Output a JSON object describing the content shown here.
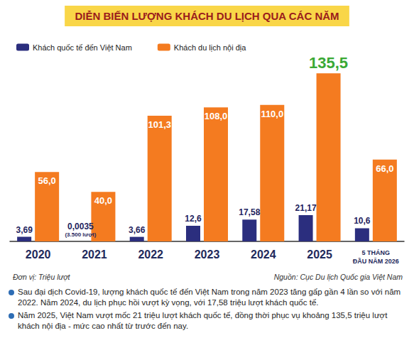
{
  "chart_data": {
    "type": "bar",
    "title": "DIỄN BIẾN LƯỢNG KHÁCH DU LỊCH QUA CÁC NĂM",
    "categories": [
      "2020",
      "2021",
      "2022",
      "2023",
      "2024",
      "2025",
      "5 THÁNG ĐẦU NĂM 2026"
    ],
    "series": [
      {
        "name": "Khách quốc tế đến Việt Nam",
        "color": "#2b2e7e",
        "values": [
          3.69,
          0.0035,
          3.66,
          12.6,
          17.58,
          21.17,
          10.6
        ],
        "value_labels": [
          "3,69",
          "0,0035",
          "3,66",
          "12,6",
          "17,58",
          "21,17",
          "10,6"
        ]
      },
      {
        "name": "Khách du lịch nội địa",
        "color": "#f47b20",
        "values": [
          56.0,
          40.0,
          101.3,
          108.0,
          110.0,
          135.5,
          66.0
        ],
        "value_labels": [
          "56,0",
          "40,0",
          "101,3",
          "108,0",
          "110,0",
          "135,5",
          "66,0"
        ]
      }
    ],
    "annotations": [
      {
        "category": "2021",
        "series": "Khách quốc tế đến Việt Nam",
        "text": "(3.500 lượt)"
      }
    ],
    "ylim": [
      0,
      150
    ],
    "data_labels": true,
    "tick_labels": "x",
    "legend": "top-left",
    "unit": "Đơn vị: Triệu lượt",
    "source": "Nguồn: Cục Du lịch Quốc gia Việt Nam",
    "notes": [
      "Sau đại dịch Covid-19, lượng khách quốc tế đến Việt Nam trong năm 2023 tăng gấp gần 4 lần so với năm 2022. Năm 2024, du lịch phục hồi vượt kỳ vọng, với 17,58 triệu lượt khách quốc tế.",
      "Năm 2025, Việt Nam vượt mốc 21 triệu lượt khách quốc tế, đồng thời phục vụ khoảng 135,5 triệu lượt khách nội địa - mức cao nhất từ trước đến nay."
    ]
  }
}
